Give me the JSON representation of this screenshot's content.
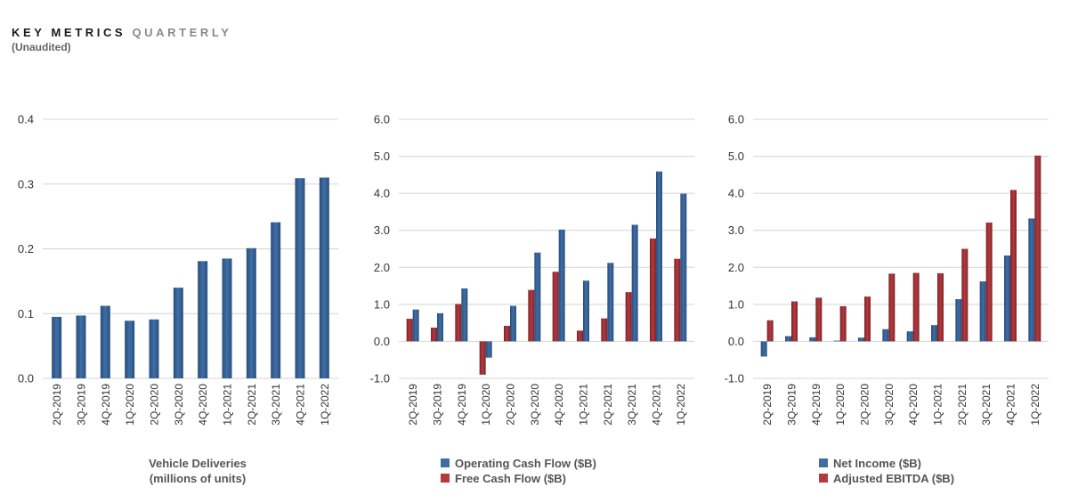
{
  "header": {
    "title_main": "KEY METRICS",
    "title_sub": "QUARTERLY",
    "note": "(Unaudited)"
  },
  "colors": {
    "blue": "#3f6ea6",
    "blue_dark": "#2a4f7c",
    "red": "#b33a3f",
    "red_dark": "#7d2328",
    "grid": "#d4d4d4"
  },
  "chart_data": [
    {
      "type": "bar",
      "categories": [
        "2Q-2019",
        "3Q-2019",
        "4Q-2019",
        "1Q-2020",
        "2Q-2020",
        "3Q-2020",
        "4Q-2020",
        "1Q-2021",
        "2Q-2021",
        "3Q-2021",
        "4Q-2021",
        "1Q-2022"
      ],
      "series": [
        {
          "name": "Vehicle Deliveries",
          "values": [
            0.095,
            0.097,
            0.112,
            0.089,
            0.091,
            0.14,
            0.181,
            0.185,
            0.201,
            0.241,
            0.309,
            0.31
          ]
        }
      ],
      "ylim": [
        0,
        0.4
      ],
      "yticks": [
        "0.0",
        "0.1",
        "0.2",
        "0.3",
        "0.4"
      ],
      "yticks_values": [
        0,
        0.1,
        0.2,
        0.3,
        0.4
      ],
      "legend_lines": [
        "Vehicle Deliveries",
        "(millions of units)"
      ],
      "legend_swatch": false
    },
    {
      "type": "bar",
      "categories": [
        "2Q-2019",
        "3Q-2019",
        "4Q-2019",
        "1Q-2020",
        "2Q-2020",
        "3Q-2020",
        "4Q-2020",
        "1Q-2021",
        "2Q-2021",
        "3Q-2021",
        "4Q-2021",
        "1Q-2022"
      ],
      "series": [
        {
          "name": "Free Cash Flow ($B)",
          "values": [
            0.61,
            0.37,
            1.01,
            -0.9,
            0.42,
            1.39,
            1.88,
            0.29,
            0.62,
            1.33,
            2.78,
            2.23
          ],
          "color": "red"
        },
        {
          "name": "Operating Cash Flow ($B)",
          "values": [
            0.86,
            0.76,
            1.43,
            -0.44,
            0.96,
            2.4,
            3.02,
            1.64,
            2.12,
            3.15,
            4.59,
            3.99
          ],
          "color": "blue"
        }
      ],
      "ylim": [
        -1,
        6
      ],
      "yticks": [
        "-1.0",
        "0.0",
        "1.0",
        "2.0",
        "3.0",
        "4.0",
        "5.0",
        "6.0"
      ],
      "yticks_values": [
        -1,
        0,
        1,
        2,
        3,
        4,
        5,
        6
      ],
      "legend_lines": [
        "Operating Cash Flow ($B)",
        "Free Cash Flow ($B)"
      ],
      "legend_swatch": true
    },
    {
      "type": "bar",
      "categories": [
        "2Q-2019",
        "3Q-2019",
        "4Q-2019",
        "1Q-2020",
        "2Q-2020",
        "3Q-2020",
        "4Q-2020",
        "1Q-2021",
        "2Q-2021",
        "3Q-2021",
        "4Q-2021",
        "1Q-2022"
      ],
      "series": [
        {
          "name": "Net Income ($B)",
          "values": [
            -0.41,
            0.14,
            0.11,
            0.02,
            0.1,
            0.33,
            0.27,
            0.44,
            1.14,
            1.62,
            2.32,
            3.32
          ],
          "color": "blue"
        },
        {
          "name": "Adjusted EBITDA ($B)",
          "values": [
            0.57,
            1.08,
            1.18,
            0.95,
            1.21,
            1.83,
            1.85,
            1.84,
            2.5,
            3.21,
            4.09,
            5.02
          ],
          "color": "red"
        }
      ],
      "ylim": [
        -1,
        6
      ],
      "yticks": [
        "-1.0",
        "0.0",
        "1.0",
        "2.0",
        "3.0",
        "4.0",
        "5.0",
        "6.0"
      ],
      "yticks_values": [
        -1,
        0,
        1,
        2,
        3,
        4,
        5,
        6
      ],
      "legend_lines": [
        "Net Income ($B)",
        "Adjusted EBITDA ($B)"
      ],
      "legend_swatch": true
    }
  ]
}
